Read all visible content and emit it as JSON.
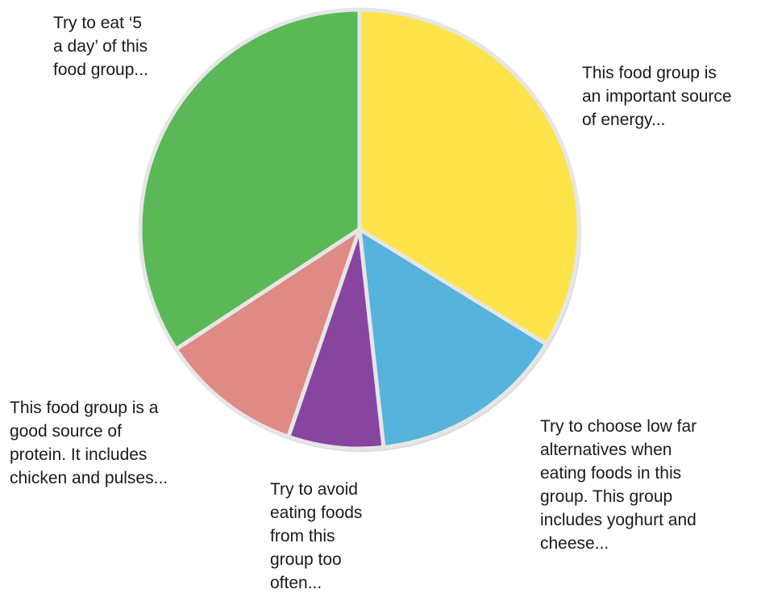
{
  "chart_data": {
    "type": "pie",
    "slices": [
      {
        "id": "yellow",
        "value": 38.5,
        "color": "#fce44a",
        "label": [
          "This food group is",
          "an important source",
          "of energy..."
        ]
      },
      {
        "id": "blue",
        "value": 16.5,
        "color": "#55b3dc",
        "label": [
          "Try to choose low far",
          "alternatives when",
          "eating foods in this",
          "group. This group",
          "includes yoghurt and",
          "cheese..."
        ]
      },
      {
        "id": "purple",
        "value": 8.0,
        "color": "#8845a0",
        "label": [
          "Try to avoid",
          "eating foods",
          "from this",
          "group too",
          "often..."
        ]
      },
      {
        "id": "pink",
        "value": 12.0,
        "color": "#df8a84",
        "label": [
          "This food group is a",
          "good source of",
          "protein. It includes",
          "chicken and pulses..."
        ]
      },
      {
        "id": "green",
        "value": 39.0,
        "color": "#5ab956",
        "label": [
          "Try to eat ‘5",
          "a day’ of this",
          "food group..."
        ]
      }
    ]
  }
}
